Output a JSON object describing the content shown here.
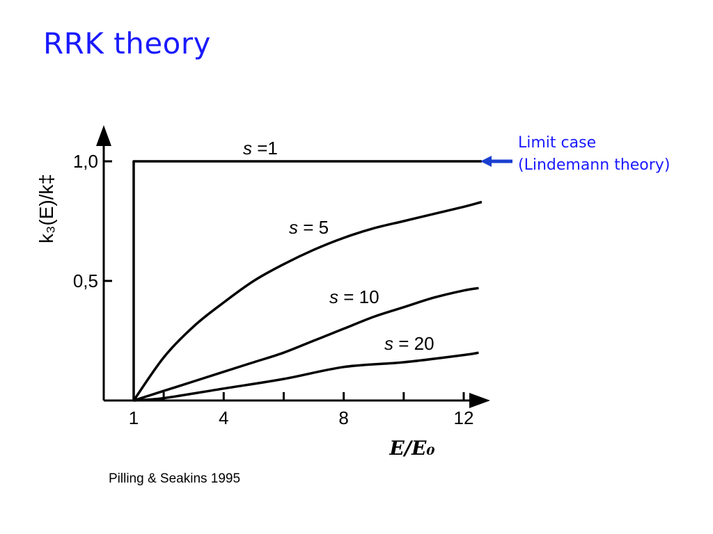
{
  "slide": {
    "title": "RRK theory",
    "limit_note": [
      "Limit case",
      "(Lindemann theory)"
    ],
    "credit": "Pilling & Seakins 1995",
    "colors": {
      "title": "#1a1aff",
      "arrow": "#1a3fd0",
      "curve": "#000000"
    }
  },
  "chart_data": {
    "type": "line",
    "xlabel": "E/E₀",
    "ylabel": "k₃(E)/k‡",
    "xlim": [
      0,
      13
    ],
    "ylim": [
      0,
      1.0
    ],
    "x_ticks": [
      1,
      4,
      8,
      12
    ],
    "y_ticks": [
      {
        "value": 1.0,
        "label": "1,0"
      },
      {
        "value": 0.5,
        "label": "0,5"
      }
    ],
    "x_minor_ticks": [
      2,
      6,
      10
    ],
    "series": [
      {
        "name": "s =1",
        "label_prefix": "s",
        "label_suffix": " =1",
        "x": [
          1,
          1,
          12.6
        ],
        "y": [
          0,
          1.0,
          1.0
        ]
      },
      {
        "name": "s = 5",
        "label_prefix": "s",
        "label_suffix": " = 5",
        "x": [
          1,
          2,
          3,
          4,
          5,
          6,
          7,
          8,
          9,
          10,
          11,
          12,
          12.6
        ],
        "y": [
          0,
          0.18,
          0.31,
          0.41,
          0.5,
          0.57,
          0.63,
          0.68,
          0.72,
          0.75,
          0.78,
          0.81,
          0.83
        ]
      },
      {
        "name": "s = 10",
        "label_prefix": "s",
        "label_suffix": " = 10",
        "x": [
          1,
          2,
          3,
          4,
          5,
          6,
          7,
          8,
          9,
          10,
          11,
          12,
          12.5
        ],
        "y": [
          0,
          0.04,
          0.08,
          0.12,
          0.16,
          0.2,
          0.25,
          0.3,
          0.35,
          0.39,
          0.43,
          0.46,
          0.47
        ]
      },
      {
        "name": "s = 20",
        "label_prefix": "s",
        "label_suffix": " = 20",
        "x": [
          1,
          2,
          4,
          6,
          8,
          10,
          12,
          12.5
        ],
        "y": [
          0,
          0.01,
          0.05,
          0.09,
          0.14,
          0.16,
          0.19,
          0.2
        ]
      }
    ]
  }
}
